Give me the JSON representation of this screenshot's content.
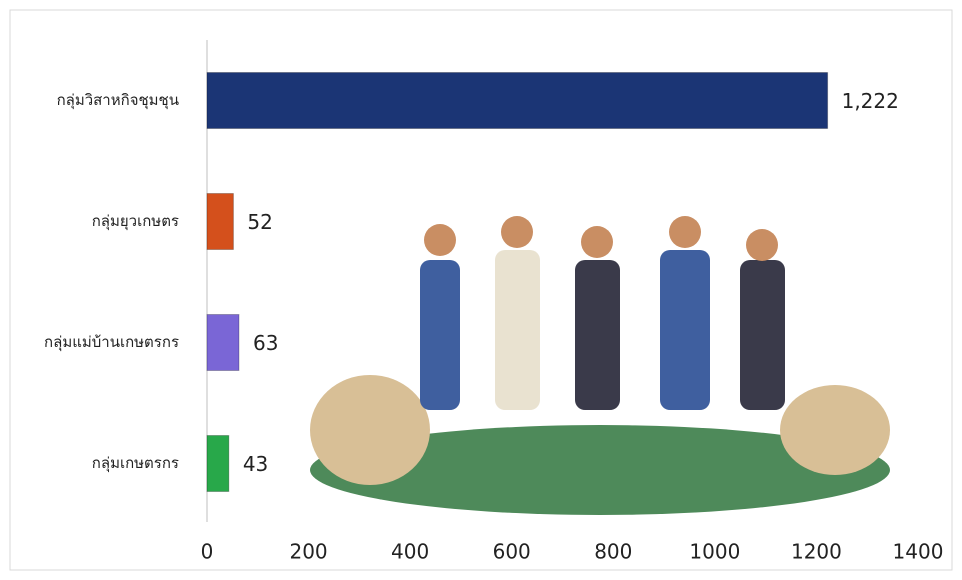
{
  "chart_data": {
    "type": "bar",
    "orientation": "horizontal",
    "categories": [
      "กลุ่มวิสาหกิจชุมชุน",
      "กลุ่มยุวเกษตร",
      "กลุ่มแม่บ้านเกษตรกร",
      "กลุ่มเกษตรกร"
    ],
    "values": [
      1222,
      52,
      63,
      43
    ],
    "value_labels": [
      "1,222",
      "52",
      "63",
      "43"
    ],
    "colors": [
      "#1b3575",
      "#d4501c",
      "#7a66d6",
      "#28a84a"
    ],
    "xlim": [
      0,
      1400
    ],
    "xticks": [
      0,
      200,
      400,
      600,
      800,
      1000,
      1200,
      1400
    ]
  }
}
